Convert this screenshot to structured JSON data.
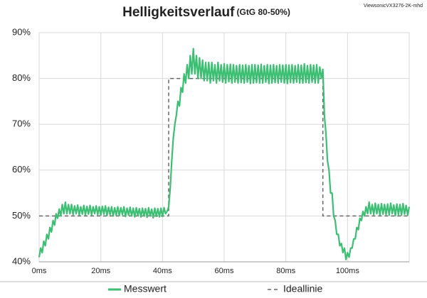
{
  "chart_data": {
    "type": "line",
    "title": "Helligkeitsverlauf",
    "subtitle": "(GtG 80-50%)",
    "annotation": "ViewsonicVX3276-2K-mhd",
    "xlim": [
      0,
      120
    ],
    "ylim": [
      40,
      90
    ],
    "xticks": [
      {
        "value": 0,
        "label": "0ms"
      },
      {
        "value": 20,
        "label": "20ms"
      },
      {
        "value": 40,
        "label": "40ms"
      },
      {
        "value": 60,
        "label": "60ms"
      },
      {
        "value": 80,
        "label": "80ms"
      },
      {
        "value": 100,
        "label": "100ms"
      }
    ],
    "yticks": [
      {
        "value": 40,
        "label": "40%"
      },
      {
        "value": 50,
        "label": "50%"
      },
      {
        "value": 60,
        "label": "60%"
      },
      {
        "value": 70,
        "label": "70%"
      },
      {
        "value": 80,
        "label": "80%"
      },
      {
        "value": 90,
        "label": "90%"
      }
    ],
    "grid": true,
    "legend": "bottom",
    "series": [
      {
        "name": "Messwert",
        "color": "#3dbf73",
        "style": "solid",
        "x": [
          0,
          0.5,
          1,
          1.5,
          2,
          2.5,
          3,
          3.5,
          4,
          4.5,
          5,
          5.5,
          6,
          6.5,
          7,
          7.5,
          8,
          8.5,
          9,
          9.5,
          10,
          10.5,
          11,
          11.5,
          12,
          12.5,
          13,
          13.5,
          14,
          14.5,
          15,
          15.5,
          16,
          16.5,
          17,
          17.5,
          18,
          18.5,
          19,
          19.5,
          20,
          20.5,
          21,
          21.5,
          22,
          22.5,
          23,
          23.5,
          24,
          24.5,
          25,
          25.5,
          26,
          26.5,
          27,
          27.5,
          28,
          28.5,
          29,
          29.5,
          30,
          30.5,
          31,
          31.5,
          32,
          32.5,
          33,
          33.5,
          34,
          34.5,
          35,
          35.5,
          36,
          36.5,
          37,
          37.5,
          38,
          38.5,
          39,
          39.5,
          40,
          40.5,
          41,
          41.5,
          42,
          42.5,
          43,
          43.5,
          44,
          44.5,
          45,
          45.5,
          46,
          46.5,
          47,
          47.5,
          48,
          48.5,
          49,
          49.5,
          50,
          50.5,
          51,
          51.5,
          52,
          52.5,
          53,
          53.5,
          54,
          54.5,
          55,
          55.5,
          56,
          56.5,
          57,
          57.5,
          58,
          58.5,
          59,
          59.5,
          60,
          60.5,
          61,
          61.5,
          62,
          62.5,
          63,
          63.5,
          64,
          64.5,
          65,
          65.5,
          66,
          66.5,
          67,
          67.5,
          68,
          68.5,
          69,
          69.5,
          70,
          70.5,
          71,
          71.5,
          72,
          72.5,
          73,
          73.5,
          74,
          74.5,
          75,
          75.5,
          76,
          76.5,
          77,
          77.5,
          78,
          78.5,
          79,
          79.5,
          80,
          80.5,
          81,
          81.5,
          82,
          82.5,
          83,
          83.5,
          84,
          84.5,
          85,
          85.5,
          86,
          86.5,
          87,
          87.5,
          88,
          88.5,
          89,
          89.5,
          90,
          90.5,
          91,
          91.5,
          92,
          92.5,
          93,
          93.5,
          94,
          94.5,
          95,
          95.5,
          96,
          96.5,
          97,
          97.5,
          98,
          98.5,
          99,
          99.5,
          100,
          100.5,
          101,
          101.5,
          102,
          102.5,
          103,
          103.5,
          104,
          104.5,
          105,
          105.5,
          106,
          106.5,
          107,
          107.5,
          108,
          108.5,
          109,
          109.5,
          110,
          110.5,
          111,
          111.5,
          112,
          112.5,
          113,
          113.5,
          114,
          114.5,
          115,
          115.5,
          116,
          116.5,
          117,
          117.5,
          118,
          118.5,
          119,
          119.5,
          120
        ],
        "values": [
          41,
          43,
          42,
          44.5,
          43.5,
          46,
          45,
          47.5,
          46.5,
          49,
          48,
          50.5,
          49.5,
          51.5,
          50,
          52.5,
          50.5,
          53,
          50.5,
          52.5,
          50.5,
          52.5,
          50.3,
          52.2,
          50.5,
          52.4,
          50.2,
          52,
          50.4,
          52.3,
          50.2,
          52.1,
          50.4,
          52.3,
          50.2,
          52,
          50.5,
          52.2,
          50.3,
          52,
          50.2,
          52.1,
          50.4,
          52.2,
          50.1,
          51.9,
          50.3,
          52,
          50,
          51.8,
          50.2,
          52,
          50.1,
          51.8,
          50.3,
          52,
          49.9,
          51.7,
          50.2,
          51.9,
          50,
          51.7,
          49.8,
          51.8,
          50.1,
          51.6,
          49.8,
          51.7,
          50,
          51.6,
          49.7,
          51.8,
          50,
          51.5,
          49.6,
          51.7,
          49.9,
          51.6,
          49.8,
          51.7,
          49.9,
          51.8,
          50.5,
          51,
          52,
          56,
          62,
          67,
          70,
          72,
          75,
          74,
          78,
          77,
          81,
          79,
          83,
          80,
          85,
          81,
          86.5,
          81,
          85,
          80,
          84.5,
          80,
          84,
          79.5,
          83.5,
          79.5,
          83.5,
          79,
          83.5,
          79.5,
          83,
          79,
          83.5,
          79.5,
          83,
          79.2,
          83.2,
          79,
          83,
          79.3,
          83.1,
          79,
          83,
          79.2,
          82.8,
          79,
          83,
          79.1,
          82.9,
          79,
          83,
          79.2,
          82.8,
          78.9,
          83,
          79,
          83,
          79.1,
          82.9,
          79,
          83.1,
          79,
          82.8,
          79.2,
          83,
          78.9,
          82.9,
          79,
          83,
          79.1,
          82.8,
          79,
          83,
          79.2,
          82.9,
          79,
          83,
          78.9,
          82.9,
          79.1,
          83,
          79,
          82.8,
          79.2,
          83,
          79,
          82.9,
          79,
          83.2,
          79.1,
          82.8,
          79,
          83,
          79.2,
          82.9,
          79,
          83,
          79,
          82.5,
          80,
          82,
          72,
          68,
          62,
          60,
          55,
          55,
          50,
          49,
          46,
          46,
          43.5,
          44,
          42,
          43,
          40.5,
          42,
          41,
          43,
          43,
          45,
          45,
          47.5,
          47,
          49.5,
          49,
          51,
          50,
          52,
          50.5,
          53,
          50.5,
          52.5,
          50.3,
          52.8,
          50.5,
          52.5,
          50.2,
          52.7,
          50.4,
          52.5,
          50.3,
          52.6,
          50.2,
          52.8,
          50.5,
          52.4,
          50.1,
          52.6,
          50.3,
          52.5,
          50.2,
          52.7,
          50.4,
          52.3,
          50.2,
          52
        ]
      },
      {
        "name": "Ideallinie",
        "color": "#666666",
        "style": "dashed",
        "x": [
          0,
          42,
          42,
          92,
          92,
          120
        ],
        "values": [
          50,
          50,
          80,
          80,
          50,
          50
        ]
      }
    ]
  }
}
